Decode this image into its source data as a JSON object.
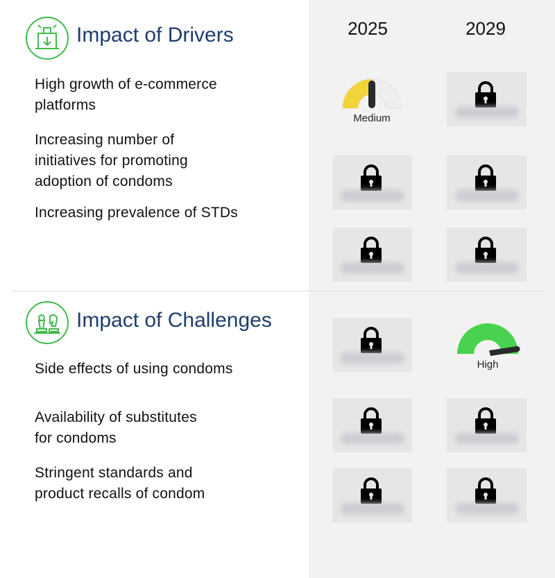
{
  "years": [
    "2025",
    "2029"
  ],
  "drivers": {
    "title": "Impact of Drivers",
    "icon": "drivers-icon",
    "rows": [
      {
        "label": "High growth of e-commerce\nplatforms",
        "y2025": "Medium",
        "y2029": "locked"
      },
      {
        "label": "Increasing number of\ninitiatives for promoting\nadoption of condoms",
        "y2025": "locked",
        "y2029": "locked"
      },
      {
        "label": "Increasing prevalence of STDs",
        "y2025": "locked",
        "y2029": "locked"
      }
    ]
  },
  "challenges": {
    "title": "Impact of Challenges",
    "icon": "chess-pieces-icon",
    "rows": [
      {
        "label": "Side effects of using condoms",
        "y2025": "locked",
        "y2029": "High"
      },
      {
        "label": "Availability of substitutes\nfor condoms",
        "y2025": "locked",
        "y2029": "locked"
      },
      {
        "label": "Stringent standards and\nproduct recalls of condom",
        "y2025": "locked",
        "y2029": "locked"
      }
    ]
  },
  "gauges": {
    "medium": {
      "label": "Medium",
      "level": 0.5,
      "color": "#f0d43a"
    },
    "high": {
      "label": "High",
      "level": 1.0,
      "color": "#49d24f"
    }
  },
  "colors": {
    "accent": "#3fba4a",
    "title": "#1e3d6b",
    "panel": "#f2f2f2"
  }
}
